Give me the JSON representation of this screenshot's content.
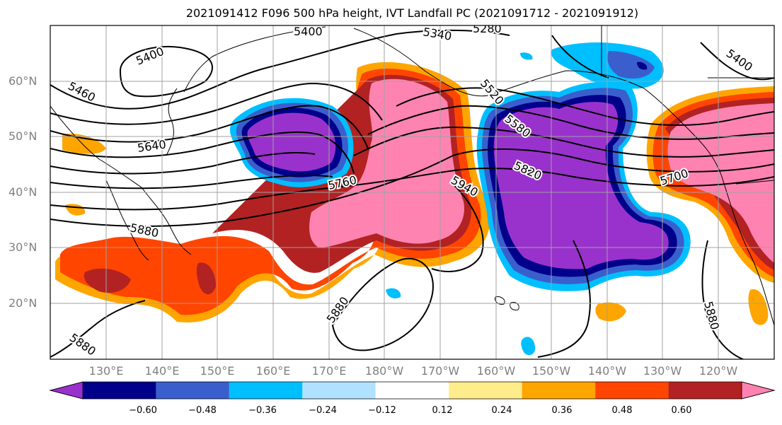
{
  "title": "2021091412 F096 500 hPa height, IVT Landfall PC (2021091712 - 2021091912)",
  "lat_labels": [
    "60°N",
    "50°N",
    "40°N",
    "30°N",
    "20°N"
  ],
  "lon_labels": [
    "130°E",
    "140°E",
    "150°E",
    "160°E",
    "170°E",
    "180°W",
    "170°W",
    "160°W",
    "150°W",
    "140°W",
    "130°W",
    "120°W"
  ],
  "contour_labels": [
    "5400",
    "5340",
    "5280",
    "5400",
    "5400",
    "5460",
    "5640",
    "5520",
    "5580",
    "5820",
    "5760",
    "5940",
    "5880",
    "5880",
    "5880",
    "5700",
    "5880"
  ],
  "colorbar": {
    "ticks": [
      "−0.60",
      "−0.48",
      "−0.36",
      "−0.24",
      "−0.12",
      "0.12",
      "0.24",
      "0.36",
      "0.48",
      "0.60"
    ],
    "colors": [
      "#9932CC",
      "#00008B",
      "#3A5FCD",
      "#00BFFF",
      "#B0E2FF",
      "#FFFFFF",
      "#FFEC8B",
      "#FFA500",
      "#FF4500",
      "#B22222",
      "#FF83B0"
    ]
  }
}
